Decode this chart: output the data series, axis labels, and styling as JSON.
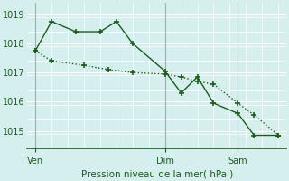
{
  "background_color": "#d5eeee",
  "grid_color": "#b8d8d8",
  "line_color": "#1a5c1a",
  "title": "Pression niveau de la mer( hPa )",
  "yticks": [
    1015,
    1016,
    1017,
    1018,
    1019
  ],
  "ylim": [
    1014.4,
    1019.4
  ],
  "xtick_labels": [
    "Ven",
    "Dim",
    "Sam"
  ],
  "xtick_positions": [
    0.5,
    8.5,
    13.0
  ],
  "xlim": [
    0,
    16
  ],
  "vline_positions": [
    0.5,
    8.5,
    13.0
  ],
  "series1_x": [
    0.5,
    1.5,
    3.0,
    4.5,
    5.5,
    6.5,
    8.5,
    9.5,
    10.5,
    11.5,
    13.0,
    14.0,
    15.5
  ],
  "series1_y": [
    1017.75,
    1018.75,
    1018.4,
    1018.4,
    1018.75,
    1018.0,
    1017.05,
    1016.3,
    1016.85,
    1015.95,
    1015.6,
    1014.85,
    1014.85
  ],
  "series2_x": [
    0.5,
    1.5,
    3.5,
    5.0,
    6.5,
    8.5,
    9.5,
    10.5,
    11.5,
    13.0,
    14.0,
    15.5
  ],
  "series2_y": [
    1017.75,
    1017.4,
    1017.25,
    1017.1,
    1017.0,
    1016.95,
    1016.85,
    1016.7,
    1016.6,
    1015.95,
    1015.55,
    1014.85
  ]
}
